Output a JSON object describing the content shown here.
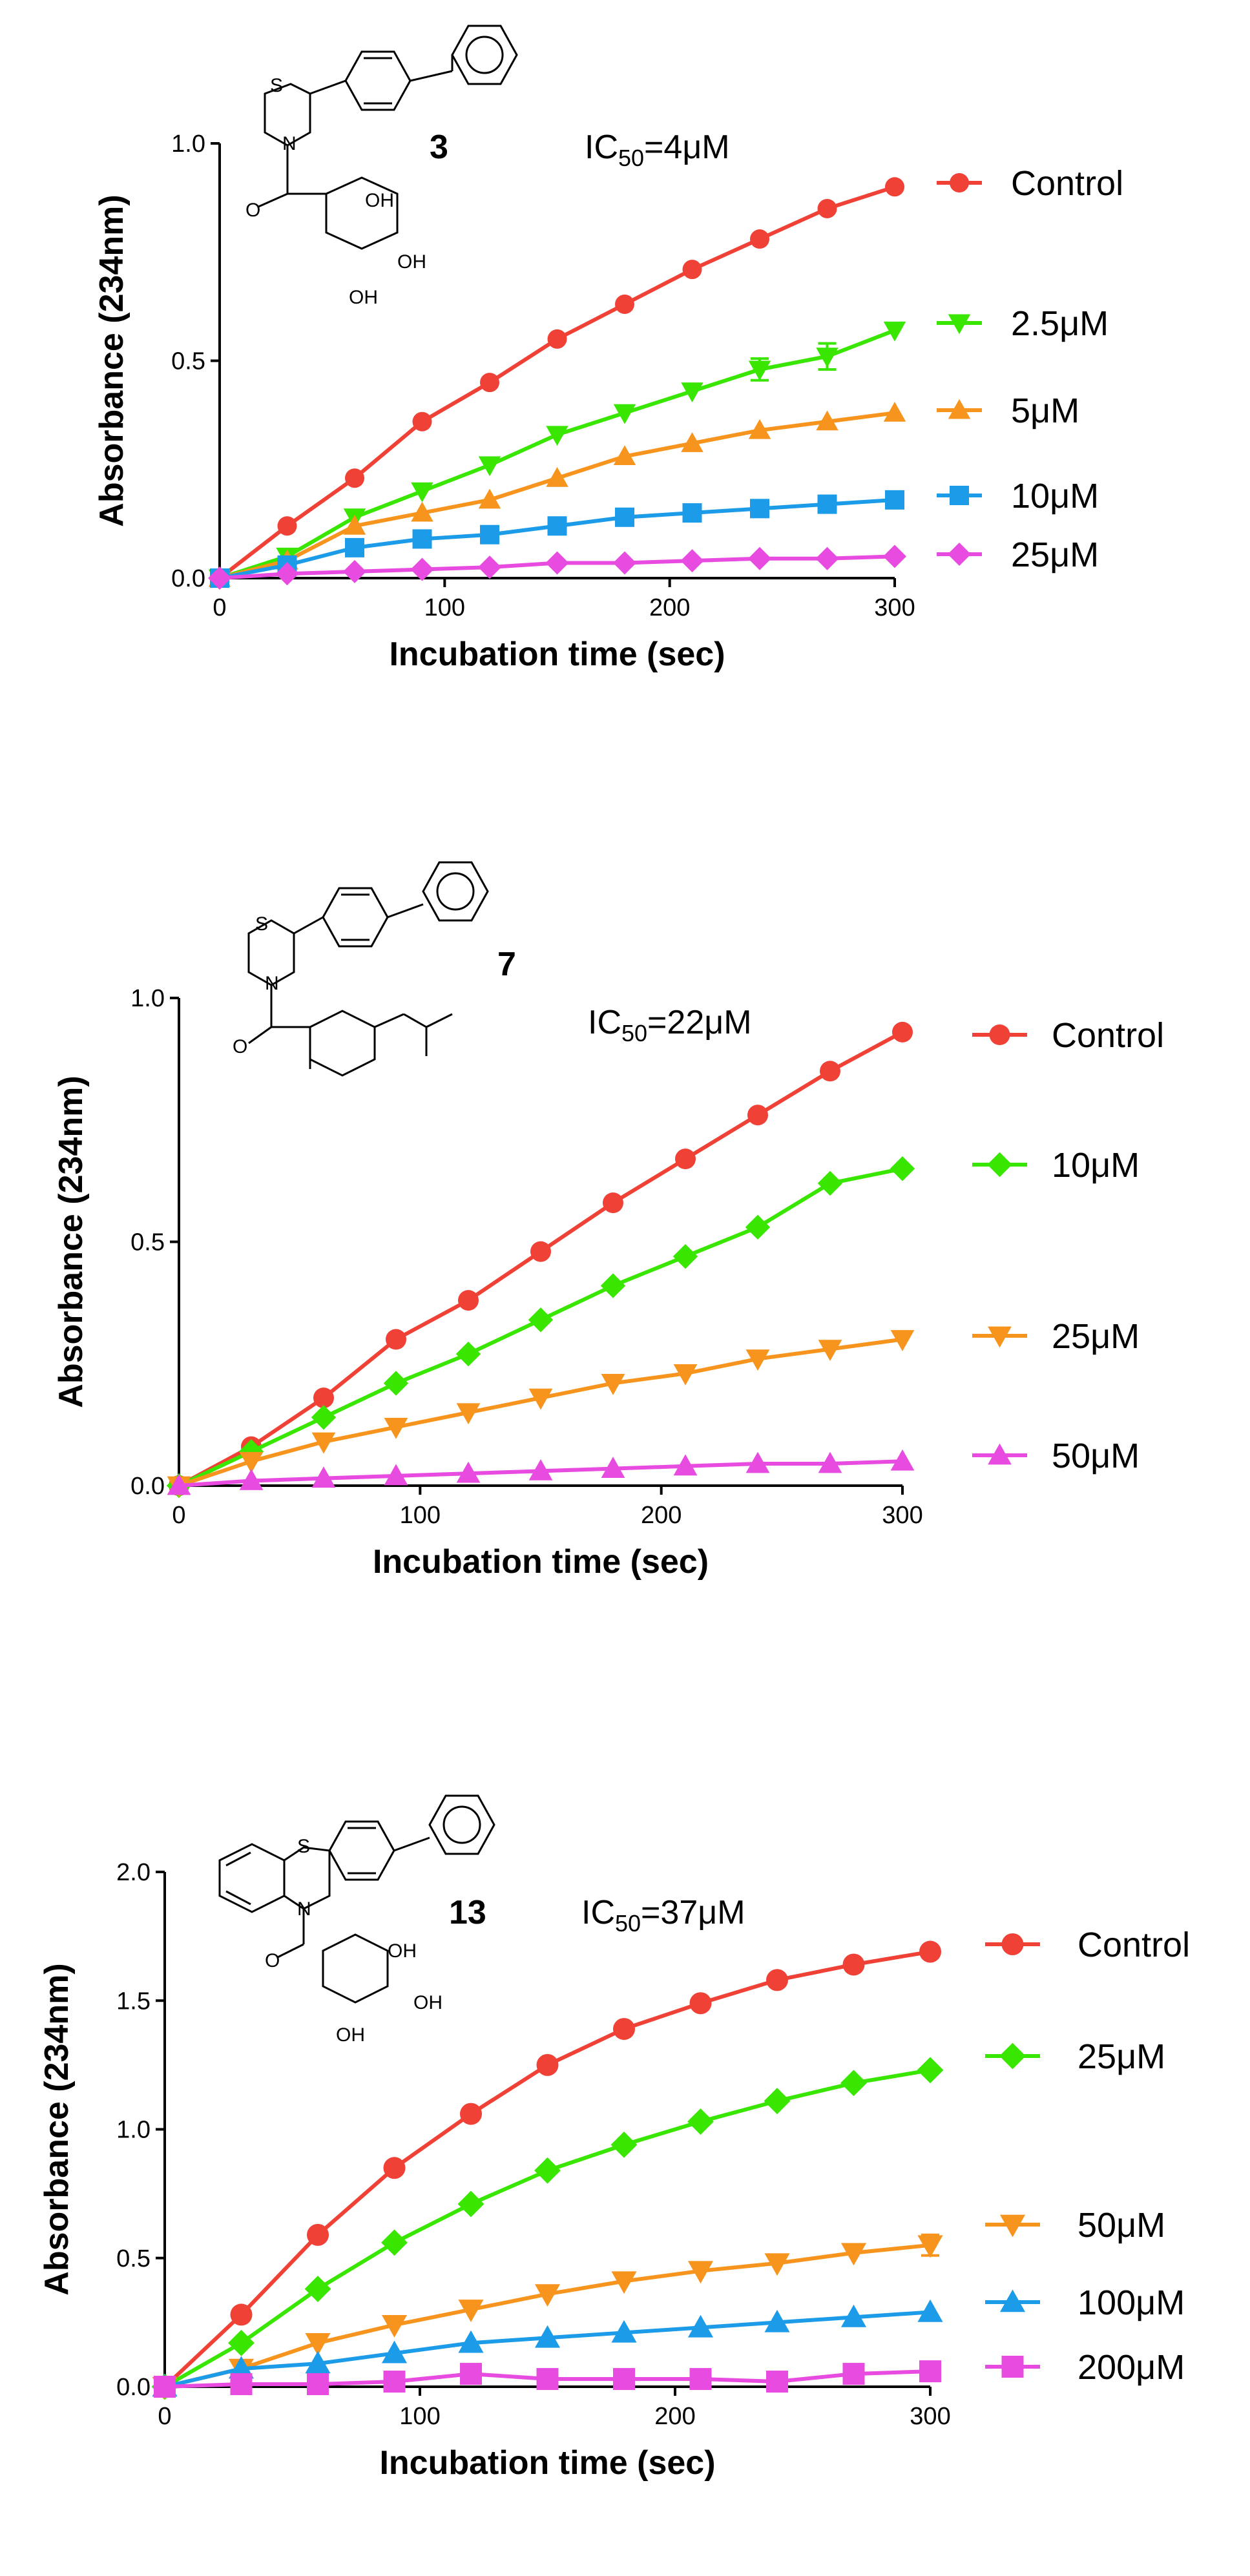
{
  "colors": {
    "red": "#ef4136",
    "green": "#39e600",
    "orange": "#f7941d",
    "blue": "#1c9be8",
    "magenta": "#e84be0"
  },
  "chart_data": [
    {
      "type": "line",
      "compound": "3",
      "ic50_prefix": "IC",
      "ic50_sub": "50",
      "ic50_value": "=4μM",
      "xlabel": "Incubation time (sec)",
      "ylabel": "Absorbance (234nm)",
      "xlim": [
        0,
        300
      ],
      "ylim": [
        0,
        1.0
      ],
      "xticks": [
        0,
        100,
        200,
        300
      ],
      "xtick_labels": [
        "0",
        "100",
        "200",
        "300"
      ],
      "yticks": [
        0,
        0.5,
        1.0
      ],
      "ytick_labels": [
        "0.0",
        "0.5",
        "1.0"
      ],
      "x": [
        0,
        30,
        60,
        90,
        120,
        150,
        180,
        210,
        240,
        270,
        300
      ],
      "series": [
        {
          "name": "Control",
          "color": "red",
          "marker": "circle",
          "values": [
            0,
            0.12,
            0.23,
            0.36,
            0.45,
            0.55,
            0.63,
            0.71,
            0.78,
            0.85,
            0.9
          ]
        },
        {
          "name": "2.5μM",
          "color": "green",
          "marker": "triangle-down",
          "values": [
            0,
            0.05,
            0.14,
            0.2,
            0.26,
            0.33,
            0.38,
            0.43,
            0.48,
            0.51,
            0.57
          ],
          "errors": [
            0,
            0,
            0,
            0,
            0,
            0,
            0,
            0,
            0.025,
            0.03,
            0
          ]
        },
        {
          "name": "5μM",
          "color": "orange",
          "marker": "triangle-up",
          "values": [
            0,
            0.04,
            0.12,
            0.15,
            0.18,
            0.23,
            0.28,
            0.31,
            0.34,
            0.36,
            0.38
          ]
        },
        {
          "name": "10μM",
          "color": "blue",
          "marker": "square",
          "values": [
            0,
            0.03,
            0.07,
            0.09,
            0.1,
            0.12,
            0.14,
            0.15,
            0.16,
            0.17,
            0.18
          ]
        },
        {
          "name": "25μM",
          "color": "magenta",
          "marker": "diamond",
          "values": [
            0,
            0.01,
            0.015,
            0.02,
            0.025,
            0.035,
            0.035,
            0.04,
            0.045,
            0.045,
            0.05
          ]
        }
      ]
    },
    {
      "type": "line",
      "compound": "7",
      "ic50_prefix": "IC",
      "ic50_sub": "50",
      "ic50_value": "=22μM",
      "xlabel": "Incubation time (sec)",
      "ylabel": "Absorbance (234nm)",
      "xlim": [
        0,
        300
      ],
      "ylim": [
        0,
        1.0
      ],
      "xticks": [
        0,
        100,
        200,
        300
      ],
      "xtick_labels": [
        "0",
        "100",
        "200",
        "300"
      ],
      "yticks": [
        0,
        0.5,
        1.0
      ],
      "ytick_labels": [
        "0.0",
        "0.5",
        "1.0"
      ],
      "x": [
        0,
        30,
        60,
        90,
        120,
        150,
        180,
        210,
        240,
        270,
        300
      ],
      "series": [
        {
          "name": "Control",
          "color": "red",
          "marker": "circle",
          "values": [
            0,
            0.08,
            0.18,
            0.3,
            0.38,
            0.48,
            0.58,
            0.67,
            0.76,
            0.85,
            0.93
          ]
        },
        {
          "name": "10μM",
          "color": "green",
          "marker": "diamond",
          "values": [
            0,
            0.07,
            0.14,
            0.21,
            0.27,
            0.34,
            0.41,
            0.47,
            0.53,
            0.62,
            0.65
          ]
        },
        {
          "name": "25μM",
          "color": "orange",
          "marker": "triangle-down",
          "values": [
            0,
            0.05,
            0.09,
            0.12,
            0.15,
            0.18,
            0.21,
            0.23,
            0.26,
            0.28,
            0.3
          ]
        },
        {
          "name": "50μM",
          "color": "magenta",
          "marker": "triangle-up",
          "values": [
            0,
            0.01,
            0.015,
            0.02,
            0.025,
            0.03,
            0.035,
            0.04,
            0.045,
            0.045,
            0.05
          ]
        }
      ]
    },
    {
      "type": "line",
      "compound": "13",
      "ic50_prefix": "IC",
      "ic50_sub": "50",
      "ic50_value": "=37μM",
      "xlabel": "Incubation time (sec)",
      "ylabel": "Absorbance (234nm)",
      "xlim": [
        0,
        300
      ],
      "ylim": [
        0,
        2.0
      ],
      "xticks": [
        0,
        100,
        200,
        300
      ],
      "xtick_labels": [
        "0",
        "100",
        "200",
        "300"
      ],
      "yticks": [
        0,
        0.5,
        1.0,
        1.5,
        2.0
      ],
      "ytick_labels": [
        "0.0",
        "0.5",
        "1.0",
        "1.5",
        "2.0"
      ],
      "x": [
        0,
        30,
        60,
        90,
        120,
        150,
        180,
        210,
        240,
        270,
        300
      ],
      "series": [
        {
          "name": "Control",
          "color": "red",
          "marker": "circle",
          "values": [
            0,
            0.28,
            0.59,
            0.85,
            1.06,
            1.25,
            1.39,
            1.49,
            1.58,
            1.64,
            1.69
          ]
        },
        {
          "name": "25μM",
          "color": "green",
          "marker": "diamond",
          "values": [
            0,
            0.17,
            0.38,
            0.56,
            0.71,
            0.84,
            0.94,
            1.03,
            1.11,
            1.18,
            1.23
          ]
        },
        {
          "name": "50μM",
          "color": "orange",
          "marker": "triangle-down",
          "values": [
            0,
            0.07,
            0.17,
            0.24,
            0.3,
            0.36,
            0.41,
            0.45,
            0.48,
            0.52,
            0.55
          ],
          "errors": [
            0,
            0,
            0,
            0,
            0,
            0,
            0,
            0,
            0,
            0,
            0.04
          ]
        },
        {
          "name": "100μM",
          "color": "blue",
          "marker": "triangle-up",
          "values": [
            0,
            0.07,
            0.09,
            0.13,
            0.17,
            0.19,
            0.21,
            0.23,
            0.25,
            0.27,
            0.29
          ]
        },
        {
          "name": "200μM",
          "color": "magenta",
          "marker": "square",
          "values": [
            0,
            0.01,
            0.01,
            0.02,
            0.05,
            0.03,
            0.03,
            0.03,
            0.02,
            0.05,
            0.06
          ]
        }
      ]
    }
  ]
}
